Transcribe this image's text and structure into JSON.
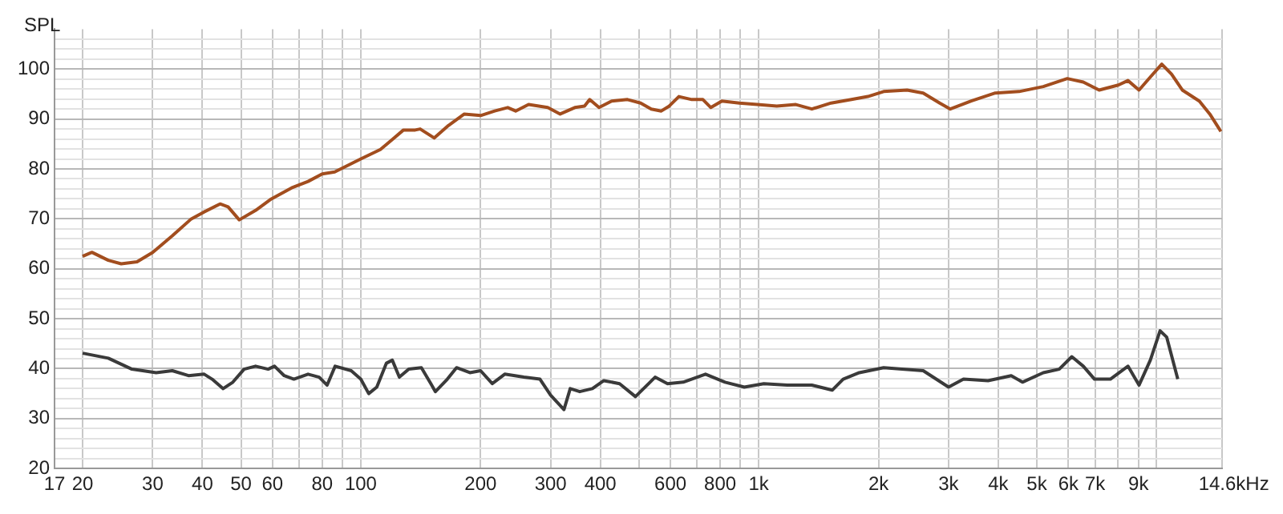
{
  "chart_data": {
    "type": "line",
    "ylabel": "SPL",
    "xlabel": "Hz",
    "xlim": [
      17,
      14600
    ],
    "ylim": [
      20,
      108
    ],
    "log": "x",
    "grid": true,
    "legend": false,
    "line_style": "solid",
    "xticks": [
      17,
      20,
      30,
      40,
      50,
      60,
      {
        "value": 70,
        "label": null
      },
      80,
      {
        "value": 90,
        "label": null
      },
      100,
      200,
      300,
      400,
      {
        "value": 500,
        "label": null
      },
      600,
      {
        "value": 700,
        "label": null
      },
      800,
      {
        "value": 900,
        "label": null
      },
      {
        "value": 1000,
        "label": "1k"
      },
      {
        "value": 2000,
        "label": "2k"
      },
      {
        "value": 3000,
        "label": "3k"
      },
      {
        "value": 4000,
        "label": "4k"
      },
      {
        "value": 5000,
        "label": "5k"
      },
      {
        "value": 6000,
        "label": "6k"
      },
      {
        "value": 7000,
        "label": "7k"
      },
      {
        "value": 8000,
        "label": null
      },
      {
        "value": 9000,
        "label": "9k"
      },
      {
        "value": 10000,
        "label": null
      },
      {
        "value": 14600,
        "label": "14.6k"
      }
    ],
    "yticks": [
      20,
      {
        "value": 22,
        "label": null
      },
      {
        "value": 24,
        "label": null
      },
      {
        "value": 26,
        "label": null
      },
      {
        "value": 28,
        "label": null
      },
      30,
      {
        "value": 32,
        "label": null
      },
      {
        "value": 34,
        "label": null
      },
      {
        "value": 36,
        "label": null
      },
      {
        "value": 38,
        "label": null
      },
      40,
      {
        "value": 42,
        "label": null
      },
      {
        "value": 44,
        "label": null
      },
      {
        "value": 46,
        "label": null
      },
      {
        "value": 48,
        "label": null
      },
      50,
      {
        "value": 52,
        "label": null
      },
      {
        "value": 54,
        "label": null
      },
      {
        "value": 56,
        "label": null
      },
      {
        "value": 58,
        "label": null
      },
      60,
      {
        "value": 62,
        "label": null
      },
      {
        "value": 64,
        "label": null
      },
      {
        "value": 66,
        "label": null
      },
      {
        "value": 68,
        "label": null
      },
      70,
      {
        "value": 72,
        "label": null
      },
      {
        "value": 74,
        "label": null
      },
      {
        "value": 76,
        "label": null
      },
      {
        "value": 78,
        "label": null
      },
      80,
      {
        "value": 82,
        "label": null
      },
      {
        "value": 84,
        "label": null
      },
      {
        "value": 86,
        "label": null
      },
      {
        "value": 88,
        "label": null
      },
      90,
      {
        "value": 92,
        "label": null
      },
      {
        "value": 94,
        "label": null
      },
      {
        "value": 96,
        "label": null
      },
      {
        "value": 98,
        "label": null
      },
      100,
      {
        "value": 102,
        "label": null
      },
      {
        "value": 104,
        "label": null
      },
      {
        "value": 106,
        "label": null
      }
    ],
    "series": [
      {
        "color": "#a24d1e",
        "x": [
          20,
          21.1,
          23.2,
          25,
          27.4,
          30,
          33.6,
          37.5,
          40.4,
          44.3,
          46.4,
          49.5,
          54.4,
          59.6,
          67,
          73.7,
          80,
          86,
          100,
          112,
          120,
          128,
          137,
          141,
          153,
          166,
          182,
          200,
          217,
          234,
          245,
          264,
          295,
          317,
          345,
          365,
          376,
          397,
          427,
          468,
          505,
          537,
          569,
          596,
          630,
          679,
          724,
          758,
          808,
          894,
          992,
          1110,
          1240,
          1360,
          1520,
          1710,
          1880,
          2060,
          2360,
          2590,
          2850,
          3030,
          3420,
          3930,
          4510,
          5190,
          5960,
          6540,
          7170,
          8010,
          8470,
          9030,
          9640,
          10300,
          10900,
          11600,
          12800,
          13600,
          14500
        ],
        "values": [
          62.5,
          63.3,
          61.7,
          61,
          61.4,
          63.3,
          66.6,
          70,
          71.4,
          73,
          72.4,
          69.8,
          71.7,
          74,
          76.2,
          77.5,
          79,
          79.4,
          82,
          83.9,
          85.9,
          87.8,
          87.8,
          88,
          86.2,
          88.7,
          91,
          90.7,
          91.6,
          92.3,
          91.6,
          92.9,
          92.3,
          91,
          92.3,
          92.6,
          93.9,
          92.3,
          93.6,
          93.9,
          93.2,
          92,
          91.6,
          92.6,
          94.5,
          93.9,
          93.9,
          92.3,
          93.6,
          93.2,
          92.9,
          92.6,
          92.9,
          92,
          93.2,
          93.9,
          94.5,
          95.5,
          95.8,
          95.2,
          93.2,
          92,
          93.6,
          95.2,
          95.5,
          96.5,
          98.1,
          97.4,
          95.8,
          96.8,
          97.7,
          95.8,
          98.4,
          101,
          99,
          95.8,
          93.6,
          91,
          87.5
        ]
      },
      {
        "color": "#3a3a3a",
        "x": [
          20,
          23.2,
          26.6,
          30.6,
          33.6,
          36.9,
          40.4,
          42.3,
          45.1,
          47.7,
          50.9,
          54.4,
          58.5,
          60.7,
          64.2,
          67.9,
          73.7,
          78.6,
          82.3,
          86.2,
          94.6,
          100,
          104.7,
          109.7,
          116,
          120,
          125,
          132,
          142,
          150,
          154,
          165,
          174,
          188,
          200,
          214,
          230,
          257,
          282,
          300,
          324,
          336,
          355,
          382,
          408,
          447,
          490,
          524,
          549,
          590,
          646,
          735,
          823,
          920,
          1030,
          1180,
          1360,
          1530,
          1630,
          1790,
          2060,
          2590,
          3000,
          3270,
          3770,
          4310,
          4600,
          5190,
          5690,
          6120,
          6540,
          6980,
          7650,
          8470,
          9030,
          9640,
          10200,
          10600,
          11300
        ],
        "values": [
          43.1,
          42.1,
          39.9,
          39.2,
          39.6,
          38.6,
          38.9,
          37.9,
          36,
          37.3,
          39.9,
          40.5,
          39.9,
          40.5,
          38.6,
          37.9,
          38.9,
          38.3,
          36.7,
          40.5,
          39.6,
          37.9,
          35,
          36.3,
          41.1,
          41.7,
          38.3,
          39.9,
          40.2,
          37,
          35.4,
          37.9,
          40.2,
          39.2,
          39.6,
          37,
          38.9,
          38.3,
          37.9,
          34.7,
          31.8,
          36,
          35.4,
          36,
          37.6,
          37,
          34.4,
          36.7,
          38.3,
          37,
          37.3,
          38.9,
          37.3,
          36.3,
          37,
          36.7,
          36.7,
          35.7,
          37.9,
          39.2,
          40.2,
          39.6,
          36.3,
          37.9,
          37.6,
          38.6,
          37.3,
          39.2,
          39.9,
          42.4,
          40.5,
          37.9,
          37.9,
          40.5,
          36.7,
          41.7,
          47.6,
          46.3,
          37.9
        ]
      }
    ]
  }
}
